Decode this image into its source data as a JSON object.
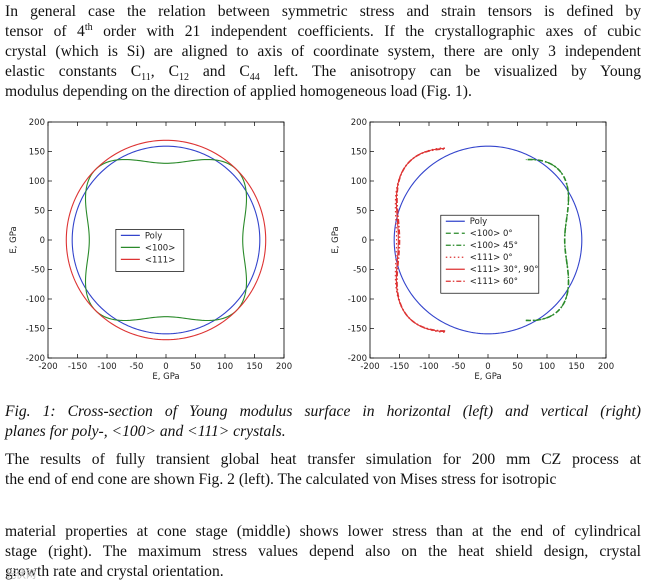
{
  "paragraph1": {
    "lines": [
      "In general case the relation between symmetric stress and strain tensors is defined by",
      [
        "tensor of 4",
        "th",
        " order with 21 independent coefficients. If the crystallographic axes of cubic"
      ],
      "crystal (which is Si) are aligned to axis of coordinate system, there are only 3 independent",
      [
        "elastic constants C",
        "11",
        ", C",
        "12",
        " and C",
        "44",
        " left. The anisotropy can be visualized by Young"
      ],
      "modulus depending on the direction of applied homogeneous  load (Fig. 1)."
    ]
  },
  "caption": {
    "line1": "Fig. 1: Cross-section of Young modulus surface in horizontal (left) and vertical (right)",
    "line2": "planes for poly-, <100> and <111> crystals."
  },
  "paragraph2": {
    "line1": "The results of fully transient global heat transfer simulation for 200 mm CZ process at",
    "line2": "the end of end cone are shown Fig. 2 (left). The calculated von Mises stress for isotropic"
  },
  "paragraph3": {
    "line1": "material properties at cone stage (middle) shows lower stress than at the end of cylindrical",
    "line2": "stage (right). The maximum stress values depend also on the heat shield design, crystal",
    "line3": "growth rate and crystal orientation."
  },
  "watermark": "光伏网",
  "chart_data": [
    {
      "type": "line",
      "panel": "left",
      "xlabel": "E, GPa",
      "ylabel": "E, GPa",
      "xlim": [
        -200,
        200
      ],
      "ylim": [
        -200,
        200
      ],
      "xticks": [
        -200,
        -150,
        -100,
        -50,
        0,
        50,
        100,
        150,
        200
      ],
      "yticks": [
        -200,
        -150,
        -100,
        -50,
        0,
        50,
        100,
        150,
        200
      ],
      "legend_position": "center",
      "series": [
        {
          "name": "Poly",
          "color": "#3344cc",
          "style": "solid",
          "shape": "circle",
          "radius": 159
        },
        {
          "name": "<100>",
          "color": "#2a8a2a",
          "style": "solid",
          "shape": "cubic-100",
          "e_axis": 130,
          "e_diag": 169
        },
        {
          "name": "<111>",
          "color": "#dd3333",
          "style": "solid",
          "shape": "circle",
          "radius": 169
        }
      ]
    },
    {
      "type": "line",
      "panel": "right",
      "xlabel": "E, GPa",
      "ylabel": "E, GPa",
      "xlim": [
        -200,
        200
      ],
      "ylim": [
        -200,
        200
      ],
      "xticks": [
        -200,
        -150,
        -100,
        -50,
        0,
        50,
        100,
        150,
        200
      ],
      "yticks": [
        -200,
        -150,
        -100,
        -50,
        0,
        50,
        100,
        150,
        200
      ],
      "legend_position": "center-right",
      "series": [
        {
          "name": "Poly",
          "color": "#3344cc",
          "style": "solid",
          "shape": "circle",
          "radius": 159
        },
        {
          "name": "<100> 0°",
          "color": "#2a8a2a",
          "style": "dashed",
          "shape": "right-lobe",
          "e_axis": 130,
          "e_diag": 169
        },
        {
          "name": "<100> 45°",
          "color": "#2a8a2a",
          "style": "dashdot",
          "shape": "right-lobe",
          "e_axis": 130,
          "e_diag": 169,
          "marker": "dot"
        },
        {
          "name": "<111> 0°",
          "color": "#dd3333",
          "style": "dotted",
          "shape": "left-lobe",
          "e_axis": 155,
          "e_diag": 188
        },
        {
          "name": "<111> 30°, 90°",
          "color": "#dd3333",
          "style": "solid",
          "shape": "left-lobe",
          "e_axis": 152,
          "e_diag": 188
        },
        {
          "name": "<111> 60°",
          "color": "#dd3333",
          "style": "dashdot",
          "shape": "left-lobe",
          "e_axis": 150,
          "e_diag": 188,
          "marker": "dot"
        }
      ]
    }
  ]
}
